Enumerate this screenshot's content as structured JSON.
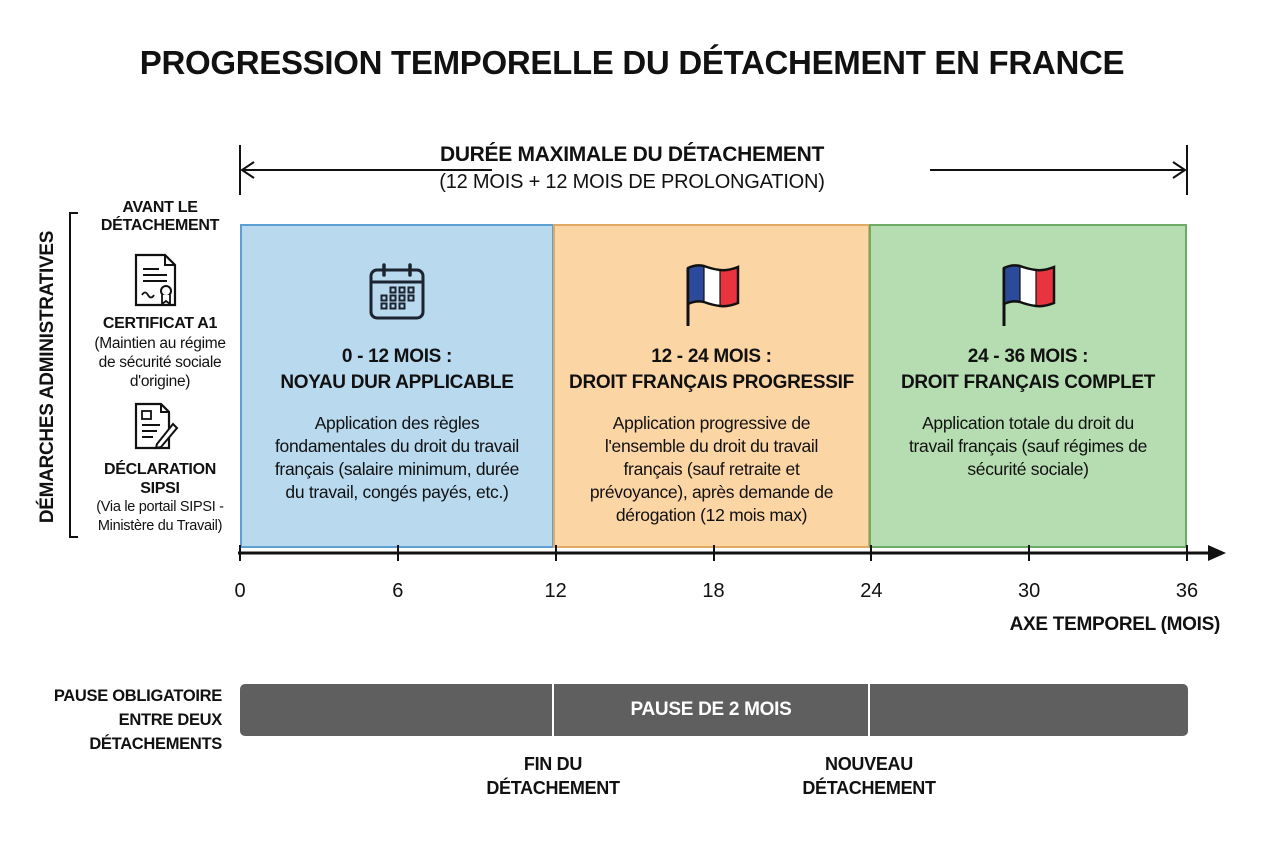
{
  "title": "PROGRESSION TEMPORELLE DU DÉTACHEMENT EN FRANCE",
  "duration": {
    "label": "DURÉE MAXIMALE DU DÉTACHEMENT",
    "sublabel": "(12 MOIS + 12 MOIS DE PROLONGATION)"
  },
  "sidebar": {
    "vertical_label": "DÉMARCHES ADMINISTRATIVES",
    "heading_line1": "AVANT LE",
    "heading_line2": "DÉTACHEMENT",
    "items": [
      {
        "icon": "certificate-icon",
        "title": "CERTIFICAT A1",
        "desc": [
          "(Maintien au régime",
          "de sécurité sociale",
          "d'origine)"
        ]
      },
      {
        "icon": "document-sign-icon",
        "title_line1": "DÉCLARATION",
        "title_line2": "SIPSI",
        "desc": [
          "(Via le portail SIPSI -",
          "Ministère du Travail)"
        ]
      }
    ]
  },
  "phases": [
    {
      "icon": "calendar-icon",
      "title1": "0 - 12 MOIS :",
      "title2": "NOYAU DUR APPLICABLE",
      "desc": "Application des règles fondamentales du droit du travail français (salaire minimum, durée du travail, congés payés, etc.)",
      "color": "#b9d9ef",
      "border": "#5b9fd3"
    },
    {
      "icon": "french-flag-icon",
      "title1": "12 - 24 MOIS :",
      "title2": "DROIT FRANÇAIS PROGRESSIF",
      "desc": "Application progressive de l'ensemble du droit du travail français (sauf retraite et prévoyance), après demande de dérogation (12 mois max)",
      "color": "#fcd5a5",
      "border": "#e2a962"
    },
    {
      "icon": "french-flag-icon",
      "title1": "24 - 36 MOIS :",
      "title2": "DROIT FRANÇAIS COMPLET",
      "desc": "Application totale du droit du travail français (sauf régimes de sécurité sociale)",
      "color": "#b6ddb1",
      "border": "#6bab65"
    }
  ],
  "axis": {
    "ticks": [
      "0",
      "6",
      "12",
      "18",
      "24",
      "30",
      "36"
    ],
    "label": "AXE TEMPOREL (MOIS)"
  },
  "pause": {
    "label": [
      "PAUSE OBLIGATOIRE",
      "ENTRE DEUX",
      "DÉTACHEMENTS"
    ],
    "bar_text": "PAUSE DE 2 MOIS",
    "end_label": [
      "FIN DU",
      "DÉTACHEMENT"
    ],
    "new_label": [
      "NOUVEAU",
      "DÉTACHEMENT"
    ]
  }
}
